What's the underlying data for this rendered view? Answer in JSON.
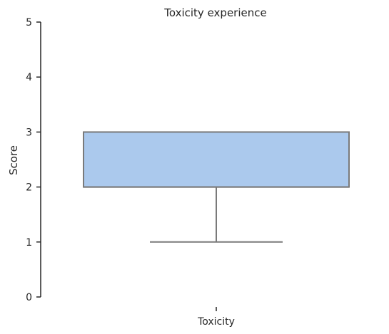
{
  "chart_data": {
    "type": "box",
    "title": "Toxicity experience",
    "xlabel": "",
    "ylabel": "Score",
    "categories": [
      "Toxicity"
    ],
    "ylim": [
      0,
      5
    ],
    "yticks": [
      0,
      1,
      2,
      3,
      4,
      5
    ],
    "grid": false,
    "boxes": [
      {
        "category": "Toxicity",
        "whisker_low": 1,
        "q1": 2,
        "median": 2,
        "q3": 3,
        "whisker_high": 3
      }
    ],
    "colors": {
      "box_fill": "#abc9ed",
      "box_edge": "#7a7a7a",
      "axis": "#262626"
    }
  }
}
